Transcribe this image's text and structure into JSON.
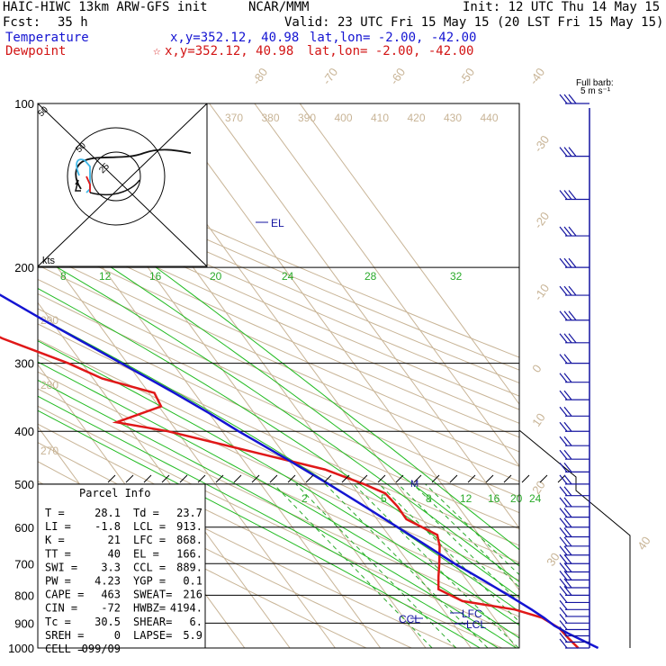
{
  "header": {
    "model": "HAIC-HIWC 13km ARW-GFS init",
    "org": "NCAR/MMM",
    "init": "Init: 12 UTC Thu 14 May 15",
    "fcst_label": "Fcst:",
    "fcst_value": "35 h",
    "valid": "Valid: 23 UTC Fri 15 May 15 (20 LST Fri 15 May 15)",
    "temperature_label": "Temperature",
    "temperature_loc": "x,y=352.12, 40.98",
    "temperature_latlon": "lat,lon= -2.00, -42.00",
    "dewpoint_label": "Dewpoint",
    "dewpoint_star": "☆",
    "dewpoint_loc": "x,y=352.12, 40.98",
    "dewpoint_latlon": "lat,lon= -2.00, -42.00"
  },
  "colors": {
    "temperature": "#1414d2",
    "dewpoint": "#e01818",
    "isotherm": "#c8b496",
    "mixing_ratio": "#2aaa2a",
    "moist_adiabat": "#22bb22",
    "barb": "#1414a0",
    "hodo_v": "#111111",
    "hodo_u": "#e01818",
    "hodo_low": "#40b8e8"
  },
  "chart_data": {
    "type": "skew-t log-p",
    "pressure_ticks": [
      100,
      200,
      300,
      400,
      500,
      600,
      700,
      800,
      900,
      1000
    ],
    "isotherm_labels": [
      "-80",
      "-70",
      "-60",
      "-50",
      "-40",
      "-30",
      "-20",
      "-10",
      "0",
      "10",
      "20",
      "30",
      "40"
    ],
    "theta_labels": [
      "370",
      "380",
      "390",
      "400",
      "410",
      "420",
      "430",
      "440"
    ],
    "theta_left_labels": [
      "290",
      "280",
      "270"
    ],
    "mixing_ratio_upper": [
      "8",
      "12",
      "16",
      "20",
      "24",
      "28",
      "32"
    ],
    "mixing_ratio_lower": [
      "2",
      "5",
      "8",
      "12",
      "16",
      "20",
      "24"
    ],
    "temperature": [
      {
        "p": 1000,
        "t": 28.1
      },
      {
        "p": 970,
        "t": 26.0
      },
      {
        "p": 940,
        "t": 23.8
      },
      {
        "p": 910,
        "t": 22.0
      },
      {
        "p": 880,
        "t": 21.0
      },
      {
        "p": 850,
        "t": 19.6
      },
      {
        "p": 800,
        "t": 16.8
      },
      {
        "p": 750,
        "t": 13.6
      },
      {
        "p": 700,
        "t": 10.0
      },
      {
        "p": 650,
        "t": 6.8
      },
      {
        "p": 600,
        "t": 3.3
      },
      {
        "p": 550,
        "t": -0.6
      },
      {
        "p": 500,
        "t": -5.0
      },
      {
        "p": 450,
        "t": -10.2
      },
      {
        "p": 420,
        "t": -13.8
      },
      {
        "p": 400,
        "t": -16.4
      },
      {
        "p": 370,
        "t": -20.0
      },
      {
        "p": 340,
        "t": -24.4
      },
      {
        "p": 300,
        "t": -31.3
      },
      {
        "p": 270,
        "t": -37.2
      },
      {
        "p": 250,
        "t": -41.5
      },
      {
        "p": 225,
        "t": -47.0
      },
      {
        "p": 200,
        "t": -53.4
      },
      {
        "p": 175,
        "t": -60.3
      },
      {
        "p": 150,
        "t": -67.7
      },
      {
        "p": 125,
        "t": -75.8
      },
      {
        "p": 110,
        "t": -80.5
      },
      {
        "p": 100,
        "t": -82.8
      }
    ],
    "dewpoint": [
      {
        "p": 1000,
        "t": 23.7
      },
      {
        "p": 960,
        "t": 23.1
      },
      {
        "p": 920,
        "t": 22.7
      },
      {
        "p": 880,
        "t": 20.6
      },
      {
        "p": 850,
        "t": 15.9
      },
      {
        "p": 820,
        "t": 5.7
      },
      {
        "p": 780,
        "t": 2.3
      },
      {
        "p": 740,
        "t": 4.3
      },
      {
        "p": 700,
        "t": 6.6
      },
      {
        "p": 650,
        "t": 9.5
      },
      {
        "p": 620,
        "t": 10.8
      },
      {
        "p": 580,
        "t": 6.5
      },
      {
        "p": 550,
        "t": 6.6
      },
      {
        "p": 520,
        "t": 6.0
      },
      {
        "p": 500,
        "t": 2.8
      },
      {
        "p": 470,
        "t": -3.5
      },
      {
        "p": 440,
        "t": -15.1
      },
      {
        "p": 400,
        "t": -32.0
      },
      {
        "p": 385,
        "t": -41.9
      },
      {
        "p": 360,
        "t": -29.5
      },
      {
        "p": 340,
        "t": -28.8
      },
      {
        "p": 320,
        "t": -38.0
      },
      {
        "p": 300,
        "t": -43.0
      },
      {
        "p": 270,
        "t": -53.6
      },
      {
        "p": 240,
        "t": -62.0
      },
      {
        "p": 210,
        "t": -68.0
      },
      {
        "p": 190,
        "t": -76.3
      },
      {
        "p": 170,
        "t": -82.2
      },
      {
        "p": 150,
        "t": -87.0
      },
      {
        "p": 130,
        "t": -93.5
      },
      {
        "p": 110,
        "t": -98.3
      },
      {
        "p": 100,
        "t": -101.2
      }
    ],
    "levels_marked": [
      {
        "label": "EL",
        "p": 166
      },
      {
        "label": "LFC",
        "p": 868
      },
      {
        "label": "LCL",
        "p": 913
      },
      {
        "label": "CCL",
        "p": 889
      }
    ],
    "m_marker": {
      "label": "M",
      "p": 500
    },
    "barbs_title": "Full barb:",
    "barbs_unit": "5 m s⁻¹",
    "barbs": [
      {
        "p": 1000,
        "flags": 1
      },
      {
        "p": 975,
        "flags": 1
      },
      {
        "p": 950,
        "flags": 1
      },
      {
        "p": 925,
        "flags": 1
      },
      {
        "p": 900,
        "flags": 1
      },
      {
        "p": 875,
        "flags": 1
      },
      {
        "p": 850,
        "flags": 1
      },
      {
        "p": 825,
        "flags": 1
      },
      {
        "p": 800,
        "flags": 2
      },
      {
        "p": 775,
        "flags": 2
      },
      {
        "p": 750,
        "flags": 2
      },
      {
        "p": 725,
        "flags": 2
      },
      {
        "p": 700,
        "flags": 2
      },
      {
        "p": 675,
        "flags": 2
      },
      {
        "p": 650,
        "flags": 2
      },
      {
        "p": 625,
        "flags": 2
      },
      {
        "p": 600,
        "flags": 2
      },
      {
        "p": 575,
        "flags": 2
      },
      {
        "p": 550,
        "flags": 2
      },
      {
        "p": 525,
        "flags": 2
      },
      {
        "p": 500,
        "flags": 2
      },
      {
        "p": 475,
        "flags": 2
      },
      {
        "p": 450,
        "flags": 2
      },
      {
        "p": 425,
        "flags": 2
      },
      {
        "p": 400,
        "flags": 2
      },
      {
        "p": 375,
        "flags": 2
      },
      {
        "p": 350,
        "flags": 2
      },
      {
        "p": 325,
        "flags": 2
      },
      {
        "p": 300,
        "flags": 2
      },
      {
        "p": 275,
        "flags": 3
      },
      {
        "p": 250,
        "flags": 3
      },
      {
        "p": 225,
        "flags": 3
      },
      {
        "p": 200,
        "flags": 3
      },
      {
        "p": 175,
        "flags": 3
      },
      {
        "p": 150,
        "flags": 3
      },
      {
        "p": 125,
        "flags": 3
      },
      {
        "p": 100,
        "flags": 3
      }
    ],
    "hodograph": {
      "kts_label": "kts",
      "ring_labels": [
        "50",
        "25"
      ]
    },
    "parcel": {
      "title": "Parcel Info",
      "rows": [
        [
          "T  =",
          "28.1",
          "Td =",
          "23.7"
        ],
        [
          "LI =",
          "-1.8",
          "LCL =",
          "913."
        ],
        [
          "K  =",
          "21",
          "LFC =",
          "868."
        ],
        [
          "TT =",
          "40",
          "EL  =",
          "166."
        ],
        [
          "SWI =",
          "3.3",
          "CCL =",
          "889."
        ],
        [
          "PW =",
          "4.23",
          "YGP =",
          "0.1"
        ],
        [
          "CAPE =",
          "463",
          "SWEAT=",
          "216"
        ],
        [
          "CIN =",
          "-72",
          "HWBZ=",
          "4194."
        ],
        [
          "Tc =",
          "30.5",
          "SHEAR=",
          "6."
        ],
        [
          "SREH =",
          "0",
          "LAPSE=",
          "5.9"
        ],
        [
          "CELL =",
          "099/09",
          "",
          ""
        ]
      ]
    }
  }
}
